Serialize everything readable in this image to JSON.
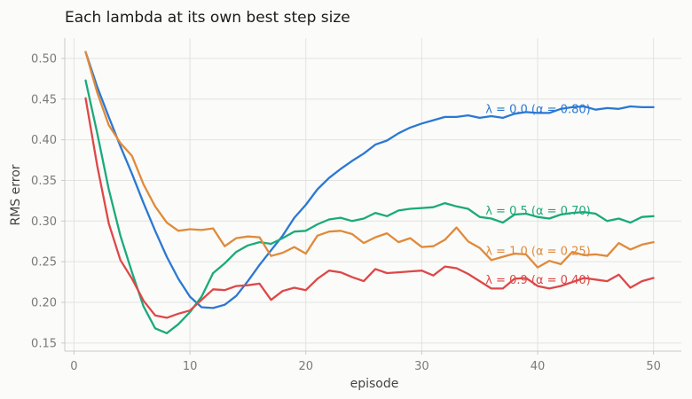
{
  "chart_data": {
    "type": "line",
    "title": "Each lambda at its own best step size",
    "xlabel": "episode",
    "ylabel": "RMS error",
    "xlim": [
      -0.8,
      52.4
    ],
    "ylim": [
      0.14,
      0.525
    ],
    "xticks": [
      0,
      10,
      20,
      30,
      40,
      50
    ],
    "xtick_labels": [
      "0",
      "10",
      "20",
      "30",
      "40",
      "50"
    ],
    "yticks": [
      0.15,
      0.2,
      0.25,
      0.3,
      0.35,
      0.4,
      0.45,
      0.5
    ],
    "ytick_labels": [
      "0.15",
      "0.20",
      "0.25",
      "0.30",
      "0.35",
      "0.40",
      "0.45",
      "0.50"
    ],
    "grid": true,
    "legend": "none (labels at right end of each line)",
    "x": [
      1,
      2,
      3,
      4,
      5,
      6,
      7,
      8,
      9,
      10,
      11,
      12,
      13,
      14,
      15,
      16,
      17,
      18,
      19,
      20,
      21,
      22,
      23,
      24,
      25,
      26,
      27,
      28,
      29,
      30,
      31,
      32,
      33,
      34,
      35,
      36,
      37,
      38,
      39,
      40,
      41,
      42,
      43,
      44,
      45,
      46,
      47,
      48,
      49,
      50
    ],
    "series": [
      {
        "name": "λ = 0.0 (α = 0.80)",
        "color": "#2a78d4",
        "label_at": [
          35.5,
          0.438
        ],
        "values": [
          0.508,
          0.465,
          0.428,
          0.392,
          0.358,
          0.322,
          0.288,
          0.256,
          0.229,
          0.207,
          0.194,
          0.193,
          0.197,
          0.208,
          0.226,
          0.246,
          0.264,
          0.282,
          0.304,
          0.32,
          0.339,
          0.353,
          0.364,
          0.374,
          0.383,
          0.394,
          0.399,
          0.408,
          0.415,
          0.42,
          0.424,
          0.428,
          0.428,
          0.43,
          0.427,
          0.429,
          0.427,
          0.432,
          0.434,
          0.433,
          0.433,
          0.438,
          0.44,
          0.441,
          0.437,
          0.439,
          0.438,
          0.441,
          0.44,
          0.44
        ]
      },
      {
        "name": "λ = 0.5 (α = 0.70)",
        "color": "#1aaa7a",
        "label_at": [
          35.5,
          0.313
        ],
        "values": [
          0.473,
          0.408,
          0.339,
          0.282,
          0.237,
          0.195,
          0.168,
          0.162,
          0.173,
          0.188,
          0.207,
          0.236,
          0.248,
          0.262,
          0.27,
          0.274,
          0.272,
          0.279,
          0.287,
          0.288,
          0.296,
          0.302,
          0.304,
          0.3,
          0.303,
          0.31,
          0.306,
          0.313,
          0.315,
          0.316,
          0.317,
          0.322,
          0.318,
          0.315,
          0.305,
          0.303,
          0.298,
          0.308,
          0.309,
          0.305,
          0.303,
          0.308,
          0.31,
          0.311,
          0.309,
          0.3,
          0.303,
          0.298,
          0.305,
          0.306
        ]
      },
      {
        "name": "λ = 1.0 (α = 0.25)",
        "color": "#e08a3a",
        "label_at": [
          35.5,
          0.263
        ],
        "values": [
          0.508,
          0.458,
          0.418,
          0.396,
          0.38,
          0.345,
          0.318,
          0.298,
          0.288,
          0.29,
          0.289,
          0.291,
          0.269,
          0.279,
          0.281,
          0.28,
          0.257,
          0.261,
          0.268,
          0.26,
          0.282,
          0.287,
          0.288,
          0.284,
          0.273,
          0.28,
          0.285,
          0.274,
          0.279,
          0.268,
          0.269,
          0.277,
          0.292,
          0.275,
          0.267,
          0.252,
          0.256,
          0.26,
          0.259,
          0.243,
          0.251,
          0.247,
          0.262,
          0.258,
          0.259,
          0.257,
          0.273,
          0.265,
          0.271,
          0.274
        ]
      },
      {
        "name": "λ = 0.9 (α = 0.40)",
        "color": "#dd4848",
        "label_at": [
          35.5,
          0.228
        ],
        "values": [
          0.451,
          0.368,
          0.297,
          0.252,
          0.229,
          0.202,
          0.184,
          0.181,
          0.186,
          0.19,
          0.203,
          0.216,
          0.215,
          0.22,
          0.221,
          0.223,
          0.203,
          0.214,
          0.218,
          0.215,
          0.229,
          0.239,
          0.237,
          0.231,
          0.226,
          0.241,
          0.236,
          0.237,
          0.238,
          0.239,
          0.233,
          0.244,
          0.242,
          0.235,
          0.226,
          0.217,
          0.217,
          0.229,
          0.23,
          0.22,
          0.217,
          0.22,
          0.225,
          0.23,
          0.228,
          0.226,
          0.234,
          0.218,
          0.226,
          0.23
        ]
      }
    ]
  }
}
